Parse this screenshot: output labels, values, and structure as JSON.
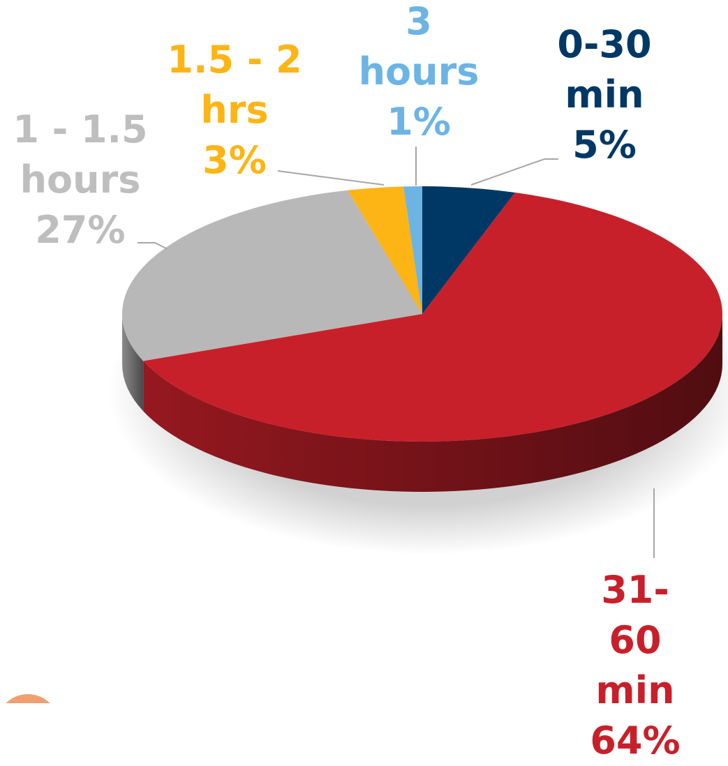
{
  "chart_data": {
    "type": "pie",
    "categories": [
      "0-30\nmin",
      "31-60\nmin",
      "1 - 1.5\nhours",
      "1.5 - 2\nhrs",
      "3\nhours"
    ],
    "values": [
      5,
      64,
      27,
      3,
      1
    ],
    "value_labels": [
      "5%",
      "64%",
      "27%",
      "3%",
      "1%"
    ],
    "colors": [
      "#003865",
      "#c8202a",
      "#b8b8b8",
      "#fdb515",
      "#6cb4e4"
    ]
  }
}
